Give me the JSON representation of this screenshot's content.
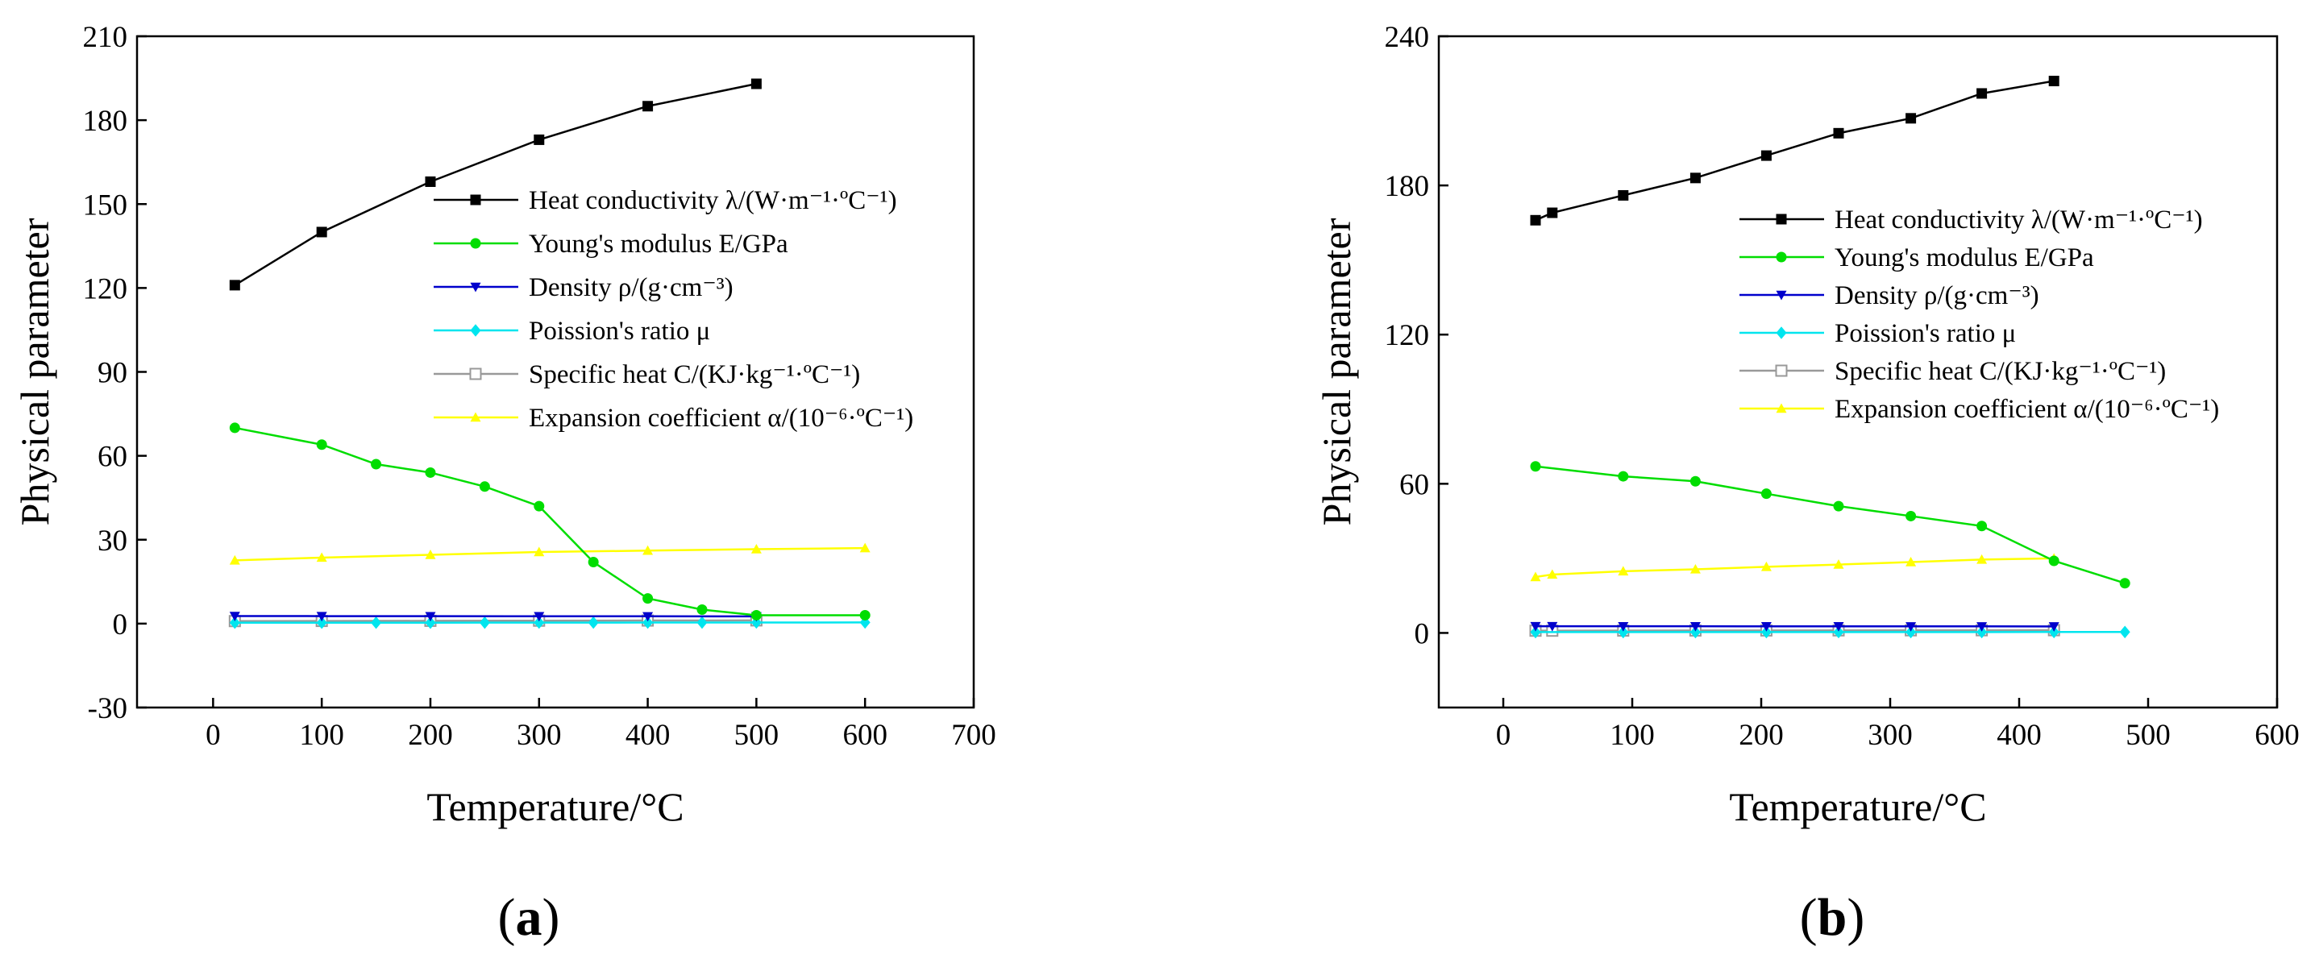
{
  "chart_data": [
    {
      "type": "line",
      "panel_label_prefix": "(",
      "panel_label_letter": "a",
      "panel_label_suffix": ")",
      "xlabel": "Temperature/°C",
      "ylabel": "Physical parameter",
      "xlim": [
        -70,
        700
      ],
      "ylim": [
        -30,
        210
      ],
      "xticks": [
        0,
        100,
        200,
        300,
        400,
        500,
        600,
        700
      ],
      "yticks": [
        -30,
        0,
        30,
        60,
        90,
        120,
        150,
        180,
        210
      ],
      "legend_position": "top-right",
      "series": [
        {
          "name": "Heat conductivity λ/(W·m⁻¹·ºC⁻¹)",
          "color": "#000000",
          "marker": "square",
          "x": [
            20,
            100,
            200,
            300,
            400,
            500
          ],
          "y": [
            121,
            140,
            158,
            173,
            185,
            193
          ]
        },
        {
          "name": "Young's modulus E/GPa",
          "color": "#00dd00",
          "marker": "circle",
          "x": [
            20,
            100,
            150,
            200,
            250,
            300,
            350,
            400,
            450,
            500,
            600
          ],
          "y": [
            70,
            64,
            57,
            54,
            49,
            42,
            22,
            9,
            5,
            3,
            3
          ]
        },
        {
          "name": "Density ρ/(g·cm⁻³)",
          "color": "#0000cc",
          "marker": "triangle-down",
          "x": [
            20,
            100,
            200,
            300,
            400,
            500
          ],
          "y": [
            2.7,
            2.68,
            2.66,
            2.64,
            2.62,
            2.6
          ]
        },
        {
          "name": "Poission's ratio μ",
          "color": "#00e5ee",
          "marker": "diamond",
          "x": [
            20,
            100,
            150,
            200,
            250,
            300,
            350,
            400,
            450,
            500,
            600
          ],
          "y": [
            0.33,
            0.33,
            0.34,
            0.34,
            0.35,
            0.36,
            0.37,
            0.38,
            0.39,
            0.4,
            0.42
          ]
        },
        {
          "name": "Specific heat C/(KJ·kg⁻¹·ºC⁻¹)",
          "color": "#999999",
          "marker": "square-open",
          "x": [
            20,
            100,
            200,
            300,
            400,
            500
          ],
          "y": [
            0.9,
            0.95,
            1.0,
            1.05,
            1.1,
            1.15
          ]
        },
        {
          "name": "Expansion coefficient α/(10⁻⁶·ºC⁻¹)",
          "color": "#ffff00",
          "marker": "triangle",
          "x": [
            20,
            100,
            200,
            300,
            400,
            500,
            600
          ],
          "y": [
            22.6,
            23.6,
            24.6,
            25.6,
            26.1,
            26.6,
            27.0
          ]
        }
      ]
    },
    {
      "type": "line",
      "panel_label_prefix": "(",
      "panel_label_letter": "b",
      "panel_label_suffix": ")",
      "xlabel": "Temperature/°C",
      "ylabel": "Physical parameter",
      "xlim": [
        -50,
        600
      ],
      "ylim": [
        -30,
        240
      ],
      "xticks": [
        0,
        100,
        200,
        300,
        400,
        500,
        600
      ],
      "yticks": [
        0,
        60,
        120,
        180,
        240
      ],
      "legend_position": "top-right",
      "series": [
        {
          "name": "Heat conductivity λ/(W·m⁻¹·ºC⁻¹)",
          "color": "#000000",
          "marker": "square",
          "x": [
            25,
            38,
            93,
            149,
            204,
            260,
            316,
            371,
            427
          ],
          "y": [
            166,
            169,
            176,
            183,
            192,
            201,
            207,
            217,
            222
          ]
        },
        {
          "name": "Young's modulus E/GPa",
          "color": "#00dd00",
          "marker": "circle",
          "x": [
            25,
            93,
            149,
            204,
            260,
            316,
            371,
            427,
            482
          ],
          "y": [
            67,
            63,
            61,
            56,
            51,
            47,
            43,
            29,
            20
          ]
        },
        {
          "name": "Density ρ/(g·cm⁻³)",
          "color": "#0000cc",
          "marker": "triangle-down",
          "x": [
            25,
            38,
            93,
            149,
            204,
            260,
            316,
            371,
            427
          ],
          "y": [
            2.7,
            2.7,
            2.69,
            2.68,
            2.67,
            2.66,
            2.65,
            2.64,
            2.63
          ]
        },
        {
          "name": "Poission's ratio μ",
          "color": "#00e5ee",
          "marker": "diamond",
          "x": [
            25,
            93,
            149,
            204,
            260,
            316,
            371,
            427,
            482
          ],
          "y": [
            0.33,
            0.33,
            0.34,
            0.34,
            0.35,
            0.35,
            0.36,
            0.37,
            0.38
          ]
        },
        {
          "name": "Specific heat C/(KJ·kg⁻¹·ºC⁻¹)",
          "color": "#999999",
          "marker": "square-open",
          "x": [
            25,
            38,
            93,
            149,
            204,
            260,
            316,
            371,
            427
          ],
          "y": [
            0.9,
            0.9,
            0.95,
            0.98,
            1.0,
            1.03,
            1.06,
            1.08,
            1.1
          ]
        },
        {
          "name": "Expansion coefficient α/(10⁻⁶·ºC⁻¹)",
          "color": "#ffff00",
          "marker": "triangle",
          "x": [
            25,
            38,
            93,
            149,
            204,
            260,
            316,
            371,
            427
          ],
          "y": [
            22.5,
            23.5,
            24.8,
            25.6,
            26.6,
            27.5,
            28.5,
            29.5,
            30.0
          ]
        }
      ]
    }
  ]
}
